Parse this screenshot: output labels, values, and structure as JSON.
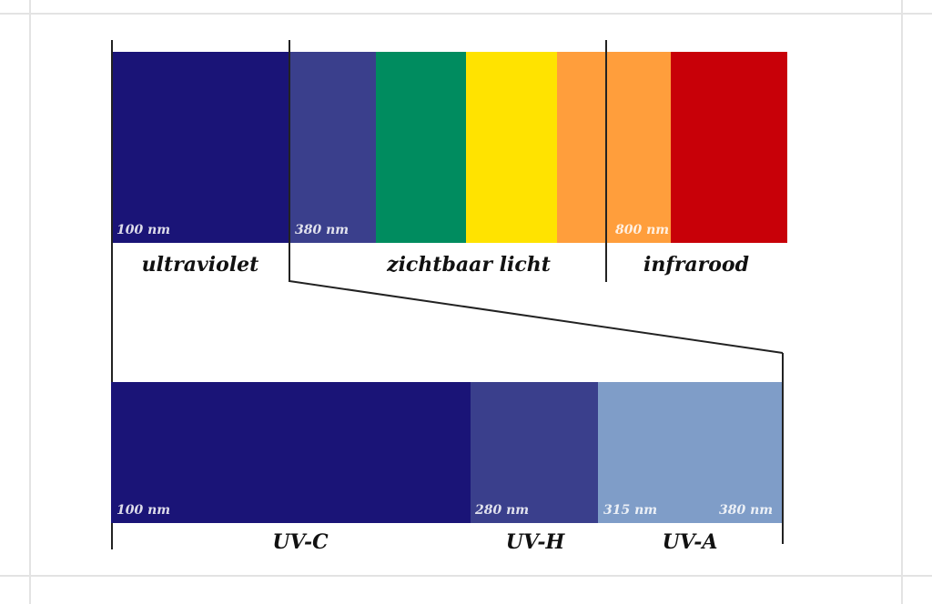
{
  "spectrum": {
    "colors": {
      "uv_dark": "#1a1477",
      "violet": "#3a3f8c",
      "green": "#008c5f",
      "yellow": "#ffe300",
      "orange": "#ff9e3c",
      "red": "#c80008",
      "uva_light": "#7f9dc8"
    },
    "markers": {
      "start": "100 nm",
      "visible_start": "380 nm",
      "ir_start": "800 nm"
    },
    "labels": {
      "uv": "ultraviolet",
      "visible": "zichtbaar licht",
      "ir": "infrarood"
    }
  },
  "uv_detail": {
    "markers": {
      "start": "100 nm",
      "uvb_start": "280 nm",
      "uva_start": "315 nm",
      "end": "380 nm"
    },
    "labels": {
      "uvc": "UV-C",
      "uvb": "UV-H",
      "uva": "UV-A"
    }
  }
}
